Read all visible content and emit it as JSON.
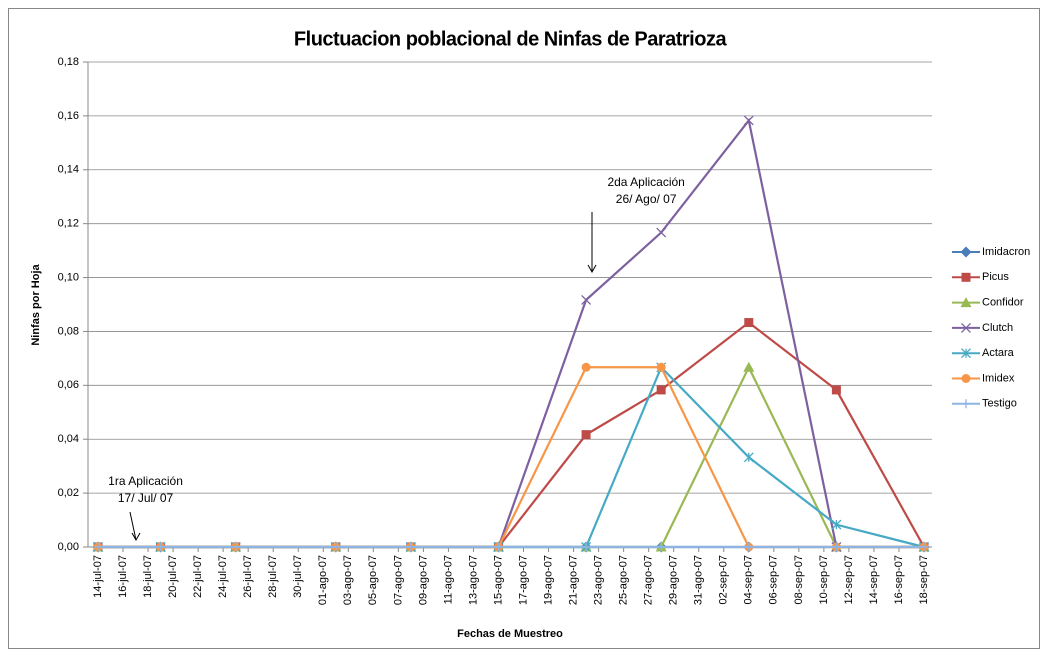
{
  "chart_data": {
    "type": "line",
    "title": "Fluctuacion poblacional de Ninfas de Paratrioza",
    "x_label": "Fechas de Muestreo",
    "y_label": "Ninfas por Hoja",
    "x": [
      "2007-07-14",
      "2007-07-19",
      "2007-07-25",
      "2007-08-02",
      "2007-08-08",
      "2007-08-15",
      "2007-08-22",
      "2007-08-28",
      "2007-09-04",
      "2007-09-11",
      "2007-09-18"
    ],
    "xlim": [
      "2007-07-14",
      "2007-09-18"
    ],
    "xticks": [
      {
        "value": "2007-07-14",
        "label": "14-jul-07"
      },
      {
        "value": "2007-07-16",
        "label": "16-jul-07"
      },
      {
        "value": "2007-07-18",
        "label": "18-jul-07"
      },
      {
        "value": "2007-07-20",
        "label": "20-jul-07"
      },
      {
        "value": "2007-07-22",
        "label": "22-jul-07"
      },
      {
        "value": "2007-07-24",
        "label": "24-jul-07"
      },
      {
        "value": "2007-07-26",
        "label": "26-jul-07"
      },
      {
        "value": "2007-07-28",
        "label": "28-jul-07"
      },
      {
        "value": "2007-07-30",
        "label": "30-jul-07"
      },
      {
        "value": "2007-08-01",
        "label": "01-ago-07"
      },
      {
        "value": "2007-08-03",
        "label": "03-ago-07"
      },
      {
        "value": "2007-08-05",
        "label": "05-ago-07"
      },
      {
        "value": "2007-08-07",
        "label": "07-ago-07"
      },
      {
        "value": "2007-08-09",
        "label": "09-ago-07"
      },
      {
        "value": "2007-08-11",
        "label": "11-ago-07"
      },
      {
        "value": "2007-08-13",
        "label": "13-ago-07"
      },
      {
        "value": "2007-08-15",
        "label": "15-ago-07"
      },
      {
        "value": "2007-08-17",
        "label": "17-ago-07"
      },
      {
        "value": "2007-08-19",
        "label": "19-ago-07"
      },
      {
        "value": "2007-08-21",
        "label": "21-ago-07"
      },
      {
        "value": "2007-08-23",
        "label": "23-ago-07"
      },
      {
        "value": "2007-08-25",
        "label": "25-ago-07"
      },
      {
        "value": "2007-08-27",
        "label": "27-ago-07"
      },
      {
        "value": "2007-08-29",
        "label": "29-ago-07"
      },
      {
        "value": "2007-08-31",
        "label": "31-ago-07"
      },
      {
        "value": "2007-09-02",
        "label": "02-sep-07"
      },
      {
        "value": "2007-09-04",
        "label": "04-sep-07"
      },
      {
        "value": "2007-09-06",
        "label": "06-sep-07"
      },
      {
        "value": "2007-09-08",
        "label": "08-sep-07"
      },
      {
        "value": "2007-09-10",
        "label": "10-sep-07"
      },
      {
        "value": "2007-09-12",
        "label": "12-sep-07"
      },
      {
        "value": "2007-09-14",
        "label": "14-sep-07"
      },
      {
        "value": "2007-09-16",
        "label": "16-sep-07"
      },
      {
        "value": "2007-09-18",
        "label": "18-sep-07"
      }
    ],
    "ylim": [
      0,
      0.18
    ],
    "yticks": [
      {
        "value": 0,
        "label": "0,00"
      },
      {
        "value": 0.02,
        "label": "0,02"
      },
      {
        "value": 0.04,
        "label": "0,04"
      },
      {
        "value": 0.06,
        "label": "0,06"
      },
      {
        "value": 0.08,
        "label": "0,08"
      },
      {
        "value": 0.1,
        "label": "0,10"
      },
      {
        "value": 0.12,
        "label": "0,12"
      },
      {
        "value": 0.14,
        "label": "0,14"
      },
      {
        "value": 0.16,
        "label": "0,16"
      },
      {
        "value": 0.18,
        "label": "0,18"
      }
    ],
    "grid": true,
    "legend": "right",
    "series": [
      {
        "name": "Imidacron",
        "color": "#4a7ebb",
        "marker": "diamond",
        "values": [
          0,
          0,
          0,
          0,
          0,
          0,
          0,
          0,
          0,
          0,
          0
        ]
      },
      {
        "name": "Picus",
        "color": "#be4b48",
        "marker": "square",
        "values": [
          0,
          0,
          0,
          0,
          0,
          0,
          0.0417,
          0.0583,
          0.0833,
          0.0583,
          0
        ]
      },
      {
        "name": "Confidor",
        "color": "#98b954",
        "marker": "triangle",
        "values": [
          0,
          0,
          0,
          0,
          0,
          0,
          0,
          0,
          0.0667,
          0,
          0
        ]
      },
      {
        "name": "Clutch",
        "color": "#7d60a0",
        "marker": "x",
        "values": [
          0,
          0,
          0,
          0,
          0,
          0,
          0.0917,
          0.1167,
          0.1583,
          0,
          0
        ]
      },
      {
        "name": "Actara",
        "color": "#46aac5",
        "marker": "star",
        "values": [
          0,
          0,
          0,
          0,
          0,
          0,
          0,
          0.0667,
          0.0333,
          0.0083,
          0
        ]
      },
      {
        "name": "Imidex",
        "color": "#f79646",
        "marker": "circle",
        "values": [
          0,
          0,
          0,
          0,
          0,
          0,
          0.0667,
          0.0667,
          0,
          0,
          0
        ]
      },
      {
        "name": "Testigo",
        "color": "#8eb4e3",
        "marker": "plus",
        "values": [
          0,
          0,
          0,
          0,
          0,
          0,
          0,
          0,
          0,
          0,
          0
        ]
      }
    ],
    "annotations": [
      {
        "x": "2007-07-17",
        "lines": [
          "1ra Aplicación",
          "17/ Jul/ 07"
        ]
      },
      {
        "x": "2007-08-26",
        "lines": [
          "2da Aplicación",
          "26/ Ago/ 07"
        ]
      }
    ]
  }
}
